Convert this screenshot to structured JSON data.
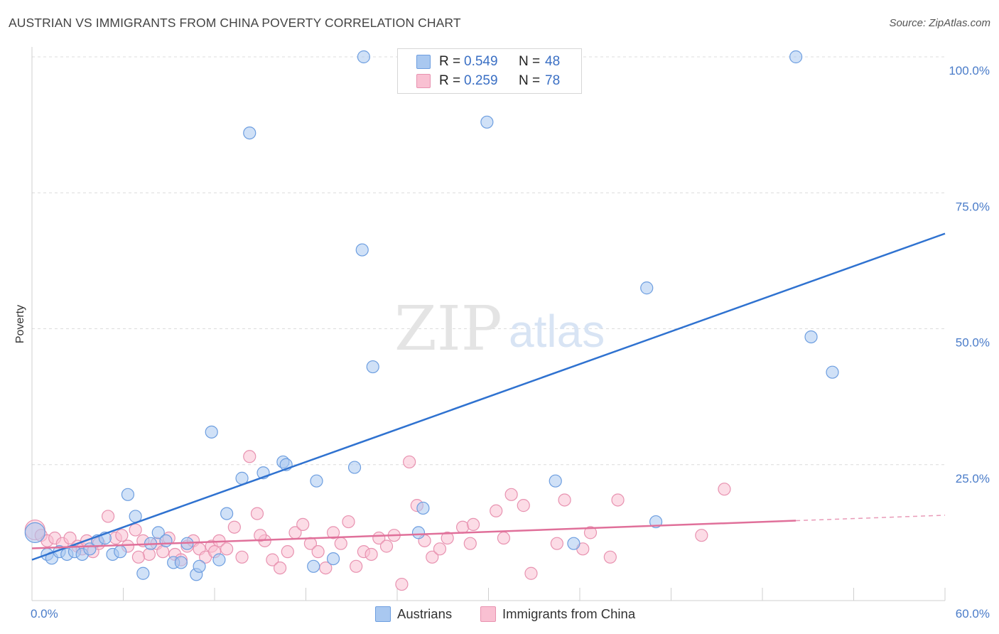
{
  "title": "AUSTRIAN VS IMMIGRANTS FROM CHINA POVERTY CORRELATION CHART",
  "source": "Source: ZipAtlas.com",
  "watermark": {
    "zip": "ZIP",
    "atlas": "atlas"
  },
  "legend": {
    "r_label": "R =",
    "n_label": "N =",
    "rows": [
      {
        "r": "0.549",
        "n": "48",
        "color": "#a9c8f0",
        "stroke": "#6d9ee0"
      },
      {
        "r": "0.259",
        "n": "78",
        "color": "#f9c0d2",
        "stroke": "#e892b0"
      }
    ]
  },
  "bottom_legend": [
    {
      "label": "Austrians",
      "color": "#a9c8f0",
      "stroke": "#6d9ee0"
    },
    {
      "label": "Immigrants from China",
      "color": "#f9c0d2",
      "stroke": "#e892b0"
    }
  ],
  "chart_data": {
    "type": "scatter",
    "title": "AUSTRIAN VS IMMIGRANTS FROM CHINA POVERTY CORRELATION CHART",
    "xlabel": "",
    "ylabel": "Poverty",
    "xlim": [
      0,
      60
    ],
    "ylim": [
      0,
      103
    ],
    "x_tick_labels": [
      "0.0%",
      "60.0%"
    ],
    "y_ticks": [
      25,
      50,
      75,
      100
    ],
    "y_tick_labels": [
      "25.0%",
      "50.0%",
      "75.0%",
      "100.0%"
    ],
    "grid": true,
    "series": [
      {
        "name": "Austrians",
        "color": "#6d9ee0",
        "fill": "#a9c8f0",
        "line_color": "#2f72d0",
        "trend": {
          "x": [
            0,
            60
          ],
          "y": [
            7.5,
            67.5
          ],
          "dashed_from": null
        },
        "points": [
          [
            0.2,
            12.5
          ],
          [
            1.0,
            8.5
          ],
          [
            1.3,
            7.8
          ],
          [
            1.8,
            9.0
          ],
          [
            2.3,
            8.5
          ],
          [
            2.8,
            9.0
          ],
          [
            3.3,
            8.5
          ],
          [
            3.8,
            9.5
          ],
          [
            4.3,
            11.0
          ],
          [
            4.8,
            11.5
          ],
          [
            5.3,
            8.5
          ],
          [
            5.8,
            9.0
          ],
          [
            6.3,
            19.5
          ],
          [
            6.8,
            15.5
          ],
          [
            7.3,
            5.0
          ],
          [
            7.8,
            10.5
          ],
          [
            8.3,
            12.5
          ],
          [
            8.8,
            11.0
          ],
          [
            9.3,
            7.0
          ],
          [
            9.8,
            7.0
          ],
          [
            10.2,
            10.5
          ],
          [
            10.8,
            4.8
          ],
          [
            11.0,
            6.3
          ],
          [
            11.8,
            31.0
          ],
          [
            12.8,
            16.0
          ],
          [
            12.3,
            7.5
          ],
          [
            13.8,
            22.5
          ],
          [
            14.3,
            86.0
          ],
          [
            15.2,
            23.5
          ],
          [
            16.5,
            25.5
          ],
          [
            16.7,
            25.0
          ],
          [
            18.5,
            6.3
          ],
          [
            18.7,
            22.0
          ],
          [
            19.8,
            7.7
          ],
          [
            21.2,
            24.5
          ],
          [
            21.7,
            64.5
          ],
          [
            21.8,
            100.0
          ],
          [
            22.4,
            43.0
          ],
          [
            25.7,
            17.0
          ],
          [
            25.4,
            12.5
          ],
          [
            29.9,
            88.0
          ],
          [
            34.4,
            22.0
          ],
          [
            35.6,
            10.5
          ],
          [
            40.4,
            57.5
          ],
          [
            41.0,
            14.5
          ],
          [
            50.2,
            100.0
          ],
          [
            51.2,
            48.5
          ],
          [
            52.6,
            42.0
          ]
        ]
      },
      {
        "name": "Immigrants from China",
        "color": "#e892b0",
        "fill": "#f9c0d2",
        "line_color": "#e0709a",
        "trend": {
          "x": [
            0,
            50.2
          ],
          "y": [
            9.6,
            14.7
          ],
          "dashed_to": [
            60,
            15.7
          ]
        },
        "points": [
          [
            0.2,
            13.0
          ],
          [
            0.6,
            12.0
          ],
          [
            1.0,
            11.0
          ],
          [
            1.5,
            11.5
          ],
          [
            2.0,
            10.5
          ],
          [
            2.5,
            11.5
          ],
          [
            3.0,
            10.0
          ],
          [
            3.3,
            9.5
          ],
          [
            3.6,
            11.0
          ],
          [
            4.0,
            9.0
          ],
          [
            4.4,
            10.5
          ],
          [
            5.0,
            15.5
          ],
          [
            5.5,
            11.5
          ],
          [
            5.9,
            12.0
          ],
          [
            6.3,
            10.0
          ],
          [
            6.8,
            13.0
          ],
          [
            7.3,
            11.0
          ],
          [
            7.7,
            8.5
          ],
          [
            8.2,
            10.5
          ],
          [
            8.6,
            9.0
          ],
          [
            9.0,
            11.5
          ],
          [
            9.4,
            8.5
          ],
          [
            9.8,
            7.5
          ],
          [
            10.2,
            10.0
          ],
          [
            10.6,
            11.0
          ],
          [
            11.0,
            9.5
          ],
          [
            11.4,
            8.0
          ],
          [
            11.8,
            10.0
          ],
          [
            12.3,
            11.0
          ],
          [
            12.8,
            9.5
          ],
          [
            13.3,
            13.5
          ],
          [
            13.8,
            8.0
          ],
          [
            14.3,
            26.5
          ],
          [
            14.8,
            16.0
          ],
          [
            15.3,
            11.0
          ],
          [
            15.8,
            7.5
          ],
          [
            16.3,
            6.0
          ],
          [
            16.8,
            9.0
          ],
          [
            17.3,
            12.5
          ],
          [
            17.8,
            14.0
          ],
          [
            18.3,
            10.5
          ],
          [
            18.8,
            9.0
          ],
          [
            19.3,
            6.0
          ],
          [
            19.8,
            12.5
          ],
          [
            20.3,
            10.5
          ],
          [
            20.8,
            14.5
          ],
          [
            21.3,
            6.3
          ],
          [
            21.8,
            9.0
          ],
          [
            22.3,
            8.5
          ],
          [
            22.8,
            11.5
          ],
          [
            23.3,
            10.0
          ],
          [
            23.8,
            12.0
          ],
          [
            24.3,
            3.0
          ],
          [
            24.8,
            25.5
          ],
          [
            25.3,
            17.5
          ],
          [
            25.8,
            11.0
          ],
          [
            26.3,
            8.0
          ],
          [
            26.8,
            9.5
          ],
          [
            27.3,
            11.5
          ],
          [
            28.3,
            13.5
          ],
          [
            28.8,
            10.5
          ],
          [
            30.5,
            16.5
          ],
          [
            31.0,
            11.5
          ],
          [
            31.5,
            19.5
          ],
          [
            32.3,
            17.5
          ],
          [
            32.8,
            5.0
          ],
          [
            34.5,
            10.5
          ],
          [
            35.0,
            18.5
          ],
          [
            36.2,
            9.5
          ],
          [
            36.7,
            12.5
          ],
          [
            38.5,
            18.5
          ],
          [
            45.5,
            20.5
          ],
          [
            44.0,
            12.0
          ],
          [
            38.0,
            8.0
          ],
          [
            29.0,
            14.0
          ],
          [
            15.0,
            12.0
          ],
          [
            12.0,
            9.0
          ],
          [
            7.0,
            8.0
          ]
        ]
      }
    ]
  }
}
